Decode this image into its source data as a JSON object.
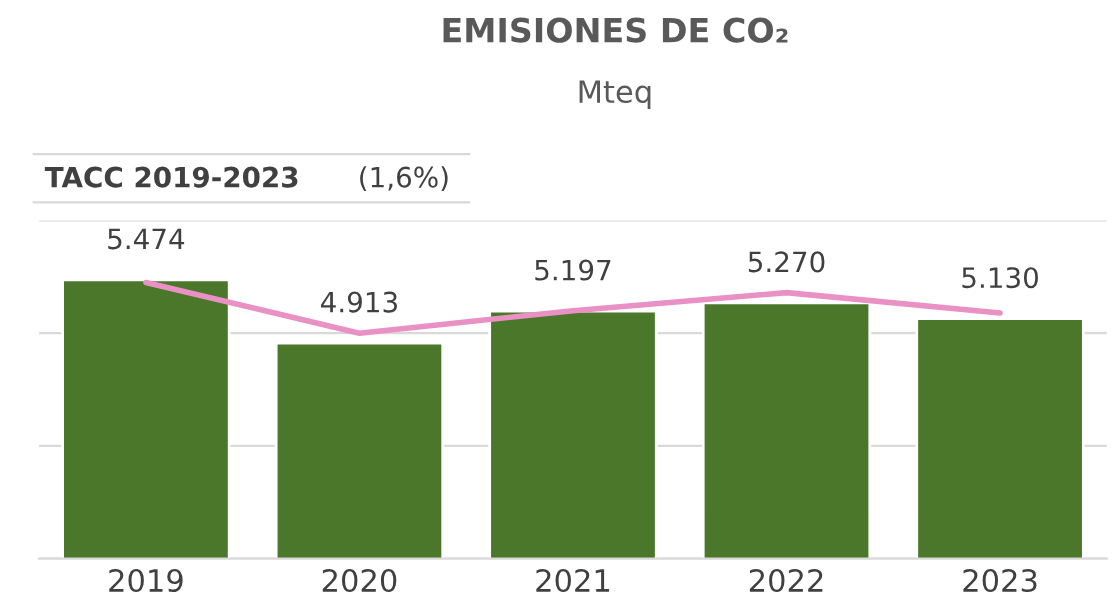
{
  "chart_data": {
    "type": "bar",
    "title": "EMISIONES DE CO₂",
    "subtitle": "Mteq",
    "categories": [
      "2019",
      "2020",
      "2021",
      "2022",
      "2023"
    ],
    "series": [
      {
        "color": "#4a7729",
        "values": [
          5474,
          4913,
          5197,
          5270,
          5130
        ],
        "value_labels": [
          "5.474",
          "4.913",
          "5.197",
          "5.270",
          "5.130"
        ]
      },
      {
        "type": "line",
        "color": "#e991c4",
        "values": [
          5450,
          5000,
          5200,
          5360,
          5180
        ]
      }
    ],
    "ylim": [
      3000,
      6000
    ],
    "yticks": [
      {
        "value": 3000,
        "label": null
      },
      {
        "value": 4000,
        "label": null
      },
      {
        "value": 5000,
        "label": null
      },
      {
        "value": 6000,
        "label": null
      }
    ],
    "tick_labels": "x",
    "grid": "y",
    "annotations": [
      "TACC 2019-2023",
      "(1,6%)"
    ]
  }
}
